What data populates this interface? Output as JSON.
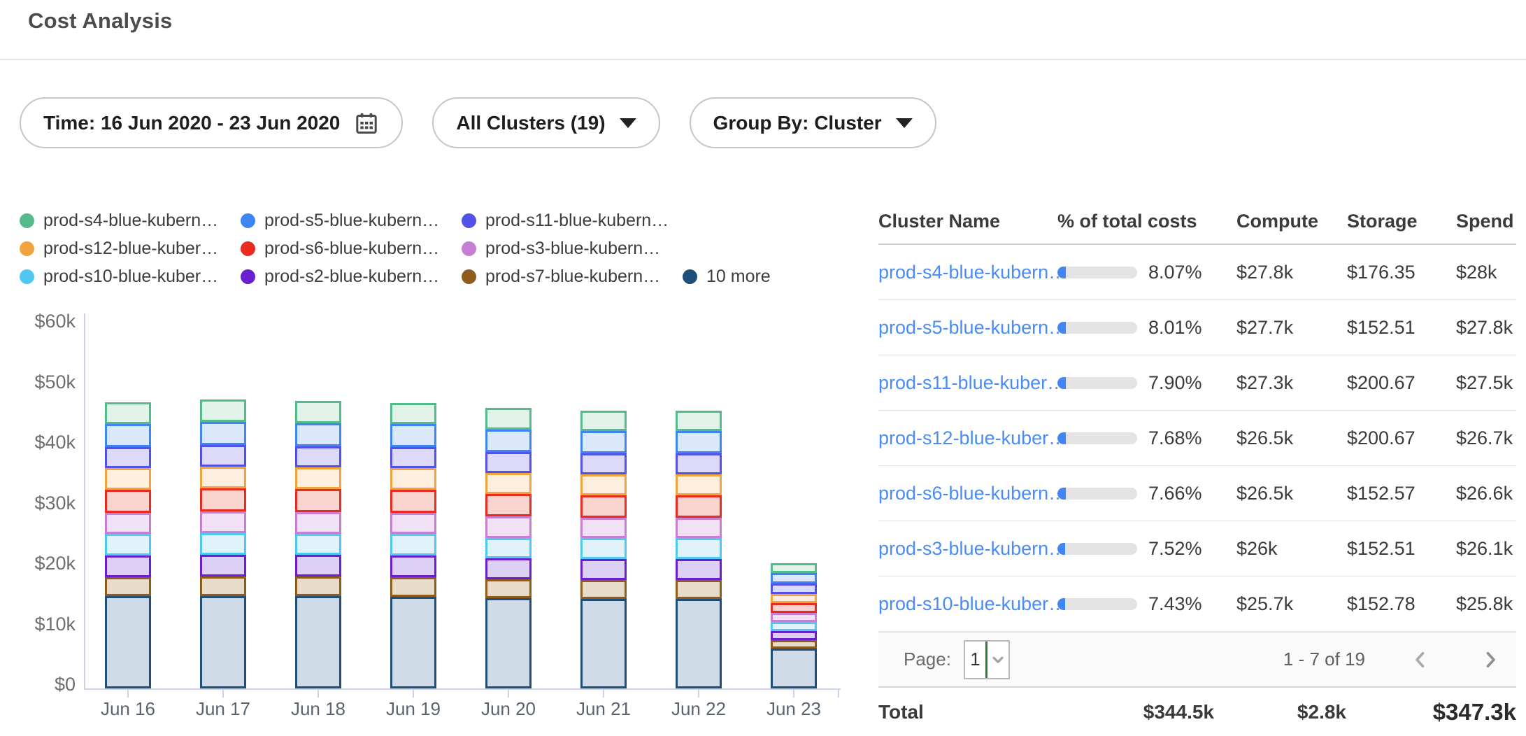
{
  "page": {
    "title": "Cost Analysis"
  },
  "filters": {
    "time": {
      "label": "Time: 16 Jun 2020 - 23 Jun 2020",
      "icon": "calendar-icon"
    },
    "clusters": {
      "label": "All Clusters (19)",
      "icon": "caret-down-icon"
    },
    "group_by": {
      "label": "Group By: Cluster",
      "icon": "caret-down-icon"
    }
  },
  "legend": {
    "rows": [
      [
        {
          "label": "prod-s4-blue-kubern…",
          "color": "#54bb8a"
        },
        {
          "label": "prod-s5-blue-kubern…",
          "color": "#3d85f4"
        },
        {
          "label": "prod-s11-blue-kubern…",
          "color": "#5352e8"
        }
      ],
      [
        {
          "label": "prod-s12-blue-kuber…",
          "color": "#f2a33c"
        },
        {
          "label": "prod-s6-blue-kubern…",
          "color": "#ea2b1f"
        },
        {
          "label": "prod-s3-blue-kubern…",
          "color": "#c77fd6"
        }
      ],
      [
        {
          "label": "prod-s10-blue-kuber…",
          "color": "#4ec9ef"
        },
        {
          "label": "prod-s2-blue-kubern…",
          "color": "#6a1fd0"
        },
        {
          "label": "prod-s7-blue-kubern…",
          "color": "#8f5c1e"
        },
        {
          "label": "10 more",
          "color": "#1f4e79"
        }
      ]
    ]
  },
  "chart_data": {
    "type": "bar",
    "subtype": "stacked-vertical",
    "x": [
      "Jun 16",
      "Jun 17",
      "Jun 18",
      "Jun 19",
      "Jun 20",
      "Jun 21",
      "Jun 22",
      "Jun 23"
    ],
    "yticks": [
      "$0",
      "$10k",
      "$20k",
      "$30k",
      "$40k",
      "$50k",
      "$60k"
    ],
    "ylim_k": [
      0,
      60
    ],
    "unit": "USD thousands per day (estimated from axis)",
    "stack_order": "bottom-to-top",
    "grid": false,
    "legend_position": "top-left",
    "series": [
      {
        "name": "10 more",
        "stroke": "#1f4e79",
        "fill": "#cfdbe7",
        "values": [
          15.2,
          15.3,
          15.3,
          15.2,
          14.9,
          14.8,
          14.8,
          6.6
        ]
      },
      {
        "name": "prod-s7-blue-kubern…",
        "stroke": "#8f5c1e",
        "fill": "#e7dcc9",
        "values": [
          3.2,
          3.2,
          3.2,
          3.2,
          3.1,
          3.1,
          3.1,
          1.4
        ]
      },
      {
        "name": "prod-s2-blue-kubern…",
        "stroke": "#6a1fd0",
        "fill": "#ddd0f5",
        "values": [
          3.6,
          3.6,
          3.6,
          3.6,
          3.5,
          3.5,
          3.5,
          1.5
        ]
      },
      {
        "name": "prod-s10-blue-kuber…",
        "stroke": "#4ec9ef",
        "fill": "#e0f2fa",
        "values": [
          3.5,
          3.5,
          3.5,
          3.5,
          3.4,
          3.4,
          3.4,
          1.5
        ]
      },
      {
        "name": "prod-s3-blue-kubern…",
        "stroke": "#c77fd6",
        "fill": "#f0e2f4",
        "values": [
          3.5,
          3.6,
          3.5,
          3.5,
          3.5,
          3.4,
          3.4,
          1.5
        ]
      },
      {
        "name": "prod-s6-blue-kubern…",
        "stroke": "#ea2b1f",
        "fill": "#fad5d0",
        "values": [
          3.8,
          3.8,
          3.8,
          3.8,
          3.7,
          3.7,
          3.7,
          1.6
        ]
      },
      {
        "name": "prod-s12-blue-kuber…",
        "stroke": "#f2a33c",
        "fill": "#fdeedd",
        "values": [
          3.6,
          3.6,
          3.6,
          3.6,
          3.5,
          3.5,
          3.5,
          1.5
        ]
      },
      {
        "name": "prod-s11-blue-kubern…",
        "stroke": "#5352e8",
        "fill": "#ddd9f8",
        "values": [
          3.5,
          3.6,
          3.5,
          3.5,
          3.5,
          3.4,
          3.4,
          1.7
        ]
      },
      {
        "name": "prod-s5-blue-kubern…",
        "stroke": "#3d85f4",
        "fill": "#dbe7fb",
        "values": [
          3.8,
          3.8,
          3.8,
          3.8,
          3.7,
          3.7,
          3.7,
          1.8
        ]
      },
      {
        "name": "prod-s4-blue-kubern…",
        "stroke": "#54bb8a",
        "fill": "#e2f3e9",
        "values": [
          3.6,
          3.7,
          3.7,
          3.5,
          3.6,
          3.4,
          3.4,
          1.6
        ]
      }
    ],
    "bar_totals_k": [
      47.3,
      47.7,
      47.5,
      47.2,
      46.4,
      45.9,
      45.9,
      20.7
    ]
  },
  "table": {
    "columns": [
      "Cluster Name",
      "% of total costs",
      "Compute",
      "Storage",
      "Spend"
    ],
    "rows": [
      {
        "name": "prod-s4-blue-kubern…",
        "pct": "8.07%",
        "pct_value": 8.07,
        "compute": "$27.8k",
        "storage": "$176.35",
        "spend": "$28k"
      },
      {
        "name": "prod-s5-blue-kubern…",
        "pct": "8.01%",
        "pct_value": 8.01,
        "compute": "$27.7k",
        "storage": "$152.51",
        "spend": "$27.8k"
      },
      {
        "name": "prod-s11-blue-kuber…",
        "pct": "7.90%",
        "pct_value": 7.9,
        "compute": "$27.3k",
        "storage": "$200.67",
        "spend": "$27.5k"
      },
      {
        "name": "prod-s12-blue-kuber…",
        "pct": "7.68%",
        "pct_value": 7.68,
        "compute": "$26.5k",
        "storage": "$200.67",
        "spend": "$26.7k"
      },
      {
        "name": "prod-s6-blue-kubern…",
        "pct": "7.66%",
        "pct_value": 7.66,
        "compute": "$26.5k",
        "storage": "$152.57",
        "spend": "$26.6k"
      },
      {
        "name": "prod-s3-blue-kubern…",
        "pct": "7.52%",
        "pct_value": 7.52,
        "compute": "$26k",
        "storage": "$152.51",
        "spend": "$26.1k"
      },
      {
        "name": "prod-s10-blue-kuber…",
        "pct": "7.43%",
        "pct_value": 7.43,
        "compute": "$25.7k",
        "storage": "$152.78",
        "spend": "$25.8k"
      }
    ],
    "pagination": {
      "page_label": "Page:",
      "page_value": "1",
      "range": "1 - 7 of 19"
    },
    "total": {
      "label": "Total",
      "compute": "$344.5k",
      "storage": "$2.8k",
      "spend": "$347.3k"
    }
  },
  "colors": {
    "link_blue": "#4a8cf7",
    "progress_fill": "#4285f4",
    "progress_track": "#e3e3e3",
    "axis": "#c9d3ee",
    "page_caret_green": "#2e7d32",
    "footer_bg": "#fafafa"
  }
}
